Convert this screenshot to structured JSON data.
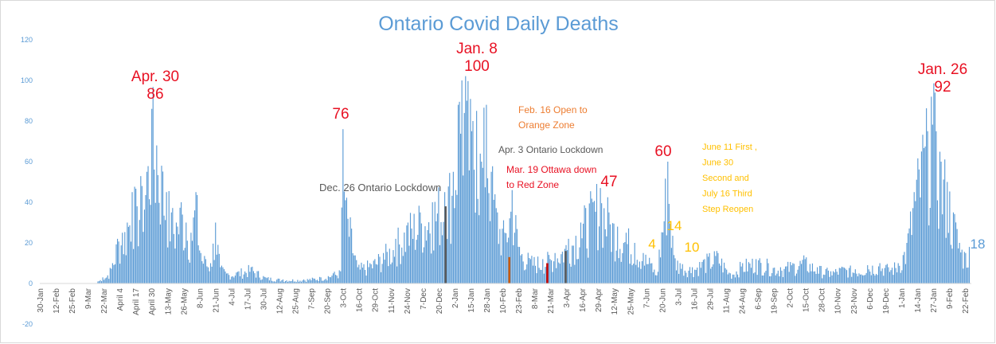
{
  "chart_data": {
    "type": "bar",
    "title": "Ontario Covid Daily Deaths",
    "ylim": [
      -20,
      120
    ],
    "y_ticks": [
      -20,
      0,
      20,
      40,
      60,
      80,
      100,
      120
    ],
    "grid": false,
    "legend": "none",
    "x_range": [
      "2020-01-30",
      "2022-02-28"
    ],
    "x_tick_labels": [
      "30-Jan",
      "12-Feb",
      "25-Feb",
      "9-Mar",
      "22-Mar",
      "April 4",
      "April 17",
      "April 30",
      "13-May",
      "26-May",
      "8-Jun",
      "21-Jun",
      "4-Jul",
      "17-Jul",
      "30-Jul",
      "12-Aug",
      "25-Aug",
      "7-Sep",
      "20-Sep",
      "3-Oct",
      "16-Oct",
      "29-Oct",
      "11-Nov",
      "24-Nov",
      "7-Dec",
      "20-Dec",
      "2-Jan",
      "15-Jan",
      "28-Jan",
      "10-Feb",
      "23-Feb",
      "8-Mar",
      "21-Mar",
      "3-Apr",
      "16-Apr",
      "29-Apr",
      "12-May",
      "25-May",
      "7-Jun",
      "20-Jun",
      "3-Jul",
      "16-Jul",
      "29-Jul",
      "11-Aug",
      "24-Aug",
      "6-Sep",
      "19-Sep",
      "2-Oct",
      "15-Oct",
      "28-Oct",
      "10-Nov",
      "23-Nov",
      "6-Dec",
      "19-Dec",
      "1-Jan",
      "14-Jan",
      "27-Jan",
      "9-Feb",
      "22-Feb"
    ],
    "series": [
      {
        "color": "#5b9bd5",
        "points": [
          [
            "2020-03-17",
            1
          ],
          [
            "2020-03-21",
            3
          ],
          [
            "2020-03-25",
            4
          ],
          [
            "2020-03-29",
            10
          ],
          [
            "2020-04-02",
            22
          ],
          [
            "2020-04-06",
            25
          ],
          [
            "2020-04-10",
            30
          ],
          [
            "2020-04-14",
            45
          ],
          [
            "2020-04-18",
            38
          ],
          [
            "2020-04-22",
            48
          ],
          [
            "2020-04-26",
            55
          ],
          [
            "2020-04-30",
            86
          ],
          [
            "2020-05-04",
            68
          ],
          [
            "2020-05-08",
            58
          ],
          [
            "2020-05-12",
            45
          ],
          [
            "2020-05-16",
            35
          ],
          [
            "2020-05-20",
            30
          ],
          [
            "2020-05-24",
            40
          ],
          [
            "2020-05-28",
            30
          ],
          [
            "2020-06-01",
            25
          ],
          [
            "2020-06-05",
            45
          ],
          [
            "2020-06-09",
            15
          ],
          [
            "2020-06-13",
            12
          ],
          [
            "2020-06-17",
            10
          ],
          [
            "2020-06-21",
            30
          ],
          [
            "2020-06-25",
            8
          ],
          [
            "2020-07-01",
            5
          ],
          [
            "2020-07-10",
            6
          ],
          [
            "2020-07-20",
            8
          ],
          [
            "2020-08-01",
            3
          ],
          [
            "2020-08-15",
            2
          ],
          [
            "2020-09-01",
            2
          ],
          [
            "2020-09-15",
            3
          ],
          [
            "2020-09-25",
            5
          ],
          [
            "2020-10-01",
            6
          ],
          [
            "2020-10-03",
            76
          ],
          [
            "2020-10-05",
            41
          ],
          [
            "2020-10-15",
            8
          ],
          [
            "2020-10-25",
            10
          ],
          [
            "2020-11-05",
            15
          ],
          [
            "2020-11-15",
            22
          ],
          [
            "2020-11-25",
            30
          ],
          [
            "2020-12-05",
            35
          ],
          [
            "2020-12-15",
            40
          ],
          [
            "2020-12-25",
            45
          ],
          [
            "2021-01-01",
            55
          ],
          [
            "2021-01-05",
            88
          ],
          [
            "2021-01-08",
            100
          ],
          [
            "2021-01-12",
            90
          ],
          [
            "2021-01-16",
            75
          ],
          [
            "2021-01-20",
            85
          ],
          [
            "2021-01-24",
            60
          ],
          [
            "2021-01-28",
            88
          ],
          [
            "2021-02-01",
            55
          ],
          [
            "2021-02-06",
            35
          ],
          [
            "2021-02-12",
            25
          ],
          [
            "2021-02-18",
            46
          ],
          [
            "2021-02-24",
            18
          ],
          [
            "2021-03-05",
            12
          ],
          [
            "2021-03-15",
            12
          ],
          [
            "2021-03-25",
            15
          ],
          [
            "2021-04-05",
            22
          ],
          [
            "2021-04-15",
            30
          ],
          [
            "2021-04-25",
            40
          ],
          [
            "2021-05-01",
            47
          ],
          [
            "2021-05-08",
            35
          ],
          [
            "2021-05-15",
            28
          ],
          [
            "2021-05-22",
            25
          ],
          [
            "2021-05-29",
            20
          ],
          [
            "2021-06-05",
            15
          ],
          [
            "2021-06-12",
            10
          ],
          [
            "2021-06-16",
            4
          ],
          [
            "2021-06-25",
            60
          ],
          [
            "2021-06-30",
            14
          ],
          [
            "2021-07-05",
            10
          ],
          [
            "2021-07-15",
            8
          ],
          [
            "2021-07-25",
            12
          ],
          [
            "2021-08-05",
            15
          ],
          [
            "2021-08-15",
            5
          ],
          [
            "2021-08-25",
            10
          ],
          [
            "2021-09-05",
            12
          ],
          [
            "2021-09-15",
            10
          ],
          [
            "2021-09-25",
            8
          ],
          [
            "2021-10-05",
            10
          ],
          [
            "2021-10-15",
            12
          ],
          [
            "2021-10-25",
            8
          ],
          [
            "2021-11-05",
            6
          ],
          [
            "2021-11-15",
            8
          ],
          [
            "2021-11-25",
            7
          ],
          [
            "2021-12-05",
            9
          ],
          [
            "2021-12-15",
            10
          ],
          [
            "2021-12-22",
            8
          ],
          [
            "2021-12-30",
            10
          ],
          [
            "2022-01-06",
            20
          ],
          [
            "2022-01-12",
            45
          ],
          [
            "2022-01-18",
            65
          ],
          [
            "2022-01-23",
            75
          ],
          [
            "2022-01-26",
            92
          ],
          [
            "2022-01-30",
            75
          ],
          [
            "2022-02-03",
            60
          ],
          [
            "2022-02-08",
            50
          ],
          [
            "2022-02-13",
            35
          ],
          [
            "2022-02-18",
            20
          ],
          [
            "2022-02-23",
            15
          ],
          [
            "2022-02-26",
            18
          ]
        ]
      }
    ],
    "highlight_bars": [
      {
        "date": "2020-12-26",
        "value": 38,
        "color": "#595959"
      },
      {
        "date": "2021-02-16",
        "value": 13,
        "color": "#c55a11"
      },
      {
        "date": "2021-03-19",
        "value": 10,
        "color": "#c00000"
      },
      {
        "date": "2021-04-03",
        "value": 16,
        "color": "#595959"
      }
    ],
    "annotations": [
      {
        "lines": [
          "Apr. 30",
          "86"
        ],
        "color": "#e81123"
      },
      {
        "lines": [
          "76"
        ],
        "color": "#e81123"
      },
      {
        "lines": [
          "Jan. 8",
          "100"
        ],
        "color": "#e81123"
      },
      {
        "lines": [
          "Dec. 26 Ontario Lockdown"
        ],
        "color": "#595959"
      },
      {
        "lines": [
          "Feb. 16 Open to",
          "Orange Zone"
        ],
        "color": "#ed7d31"
      },
      {
        "lines": [
          "Apr. 3 Ontario Lockdown"
        ],
        "color": "#595959"
      },
      {
        "lines": [
          "Mar. 19 Ottawa down",
          "to Red Zone"
        ],
        "color": "#e81123"
      },
      {
        "lines": [
          "47"
        ],
        "color": "#e81123"
      },
      {
        "lines": [
          "60"
        ],
        "color": "#e81123"
      },
      {
        "lines": [
          "June 11 First ,",
          "June 30",
          "Second and",
          "July 16 Third",
          "Step Reopen"
        ],
        "color": "#ffc000"
      },
      {
        "lines": [
          "4"
        ],
        "color": "#ffc000"
      },
      {
        "lines": [
          "14"
        ],
        "color": "#ffc000"
      },
      {
        "lines": [
          "10"
        ],
        "color": "#ffc000"
      },
      {
        "lines": [
          "Jan. 26",
          "92"
        ],
        "color": "#e81123"
      },
      {
        "lines": [
          "18"
        ],
        "color": "#5b9bd5"
      }
    ],
    "colors": {
      "title": "#5b9bd5",
      "bars": "#5b9bd5",
      "axis_text": "#595959",
      "y_tick_text": "#5b9bd5",
      "axis_line": "#d9d9d9"
    }
  }
}
